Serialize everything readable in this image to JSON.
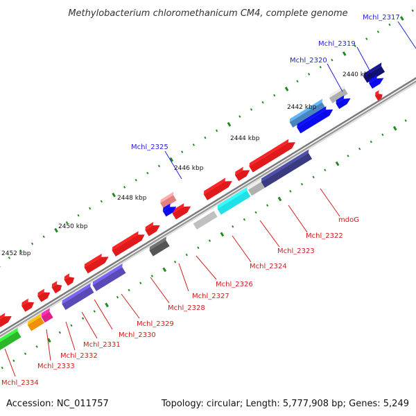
{
  "title": "Methylobacterium chloromethanicum CM4, complete genome",
  "footer": {
    "accession": "Accession: NC_011757",
    "summary": "Topology: circular; Length: 5,777,908 bp; Genes: 5,249"
  },
  "colors": {
    "backbone": "#7a7a7a",
    "tick": "#1f8a1f",
    "label_top": "#1f1fd6",
    "label_bottom": "#d41a1a"
  },
  "position_labels": [
    "2440 kbp",
    "2442 kbp",
    "2444 kbp",
    "2446 kbp",
    "2448 kbp",
    "2450 kbp",
    "2452 kbp"
  ],
  "genes_top": [
    {
      "label": "Mchl_2317",
      "color": "#101070"
    },
    {
      "label": "Mchl_2319",
      "color": "#b0b0b0"
    },
    {
      "label": "Mchl_2320",
      "color": "#4a86be"
    },
    {
      "label": "Mchl_2325",
      "color": "#e08080"
    }
  ],
  "genes_bottom": [
    {
      "label": "mdoG",
      "color": "#3a3a80"
    },
    {
      "label": "Mchl_2322",
      "color": "#b0b0b0"
    },
    {
      "label": "Mchl_2323",
      "color": "#22e0e8"
    },
    {
      "label": "Mchl_2324",
      "color": "#c0c0c0"
    },
    {
      "label": "Mchl_2326",
      "color": "#555555"
    },
    {
      "label": "Mchl_2327",
      "color": "#e01a1a"
    },
    {
      "label": "Mchl_2328",
      "color": "#5a4ab8"
    },
    {
      "label": "Mchl_2329",
      "color": "#5a4ab8"
    },
    {
      "label": "Mchl_2330",
      "color": "#e0208a"
    },
    {
      "label": "Mchl_2331",
      "color": "#f0900a"
    },
    {
      "label": "Mchl_2332",
      "color": "#e01a1a"
    },
    {
      "label": "Mchl_2333",
      "color": "#e01a1a"
    },
    {
      "label": "Mchl_2334",
      "color": "#2ab82a"
    }
  ]
}
